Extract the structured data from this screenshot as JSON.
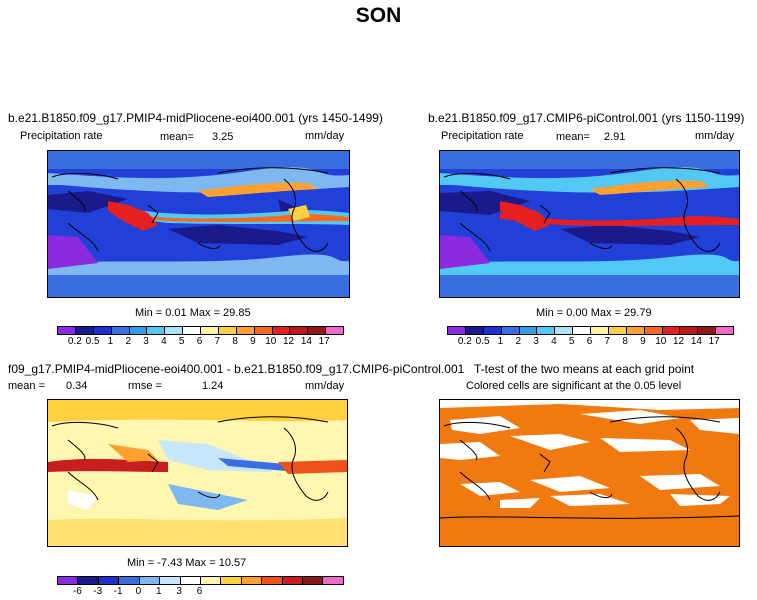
{
  "figure": {
    "season": "SON"
  },
  "panels": {
    "p1": {
      "title": "b.e21.B1850.f09_g17.PMIP4-midPliocene-eoi400.001 (yrs 1450-1499)",
      "field": "Precipitation rate",
      "mean_label": "mean=",
      "mean_value": "3.25",
      "units": "mm/day",
      "minmax": "Min =    0.01  Max =   29.85"
    },
    "p2": {
      "title": "b.e21.B1850.f09_g17.CMIP6-piControl.001 (yrs 1150-1199)",
      "field": "Precipitation rate",
      "mean_label": "mean=",
      "mean_value": "2.91",
      "units": "mm/day",
      "minmax": "Min =    0.00  Max =   29.79"
    },
    "p3": {
      "title": "f09_g17.PMIP4-midPliocene-eoi400.001 - b.e21.B1850.f09_g17.CMIP6-piControl.001",
      "mean_label": "mean =",
      "mean_value": "0.34",
      "rmse_label": "rmse =",
      "rmse_value": "1.24",
      "units": "mm/day",
      "minmax": "Min =   -7.43  Max =   10.57"
    },
    "p4": {
      "title": "T-test of the two means at each grid point",
      "note": "Colored cells are significant at the 0.05 level",
      "significant_color": "#f07a10"
    }
  },
  "chart_data": [
    {
      "type": "heatmap",
      "title": "b.e21.B1850.f09_g17.PMIP4-midPliocene-eoi400.001 (yrs 1450-1499)",
      "variable": "Precipitation rate",
      "units": "mm/day",
      "mean": 3.25,
      "min": 0.01,
      "max": 29.85,
      "colorbar_levels": [
        "0.2",
        "0.5",
        "1",
        "2",
        "3",
        "4",
        "5",
        "6",
        "7",
        "8",
        "9",
        "10",
        "12",
        "14",
        "17"
      ],
      "colorbar_colors": [
        "#8a2be2",
        "#1a1a8c",
        "#1f2fd1",
        "#3a6ee0",
        "#2e9fe6",
        "#54c8f5",
        "#a9e3f7",
        "#ffffff",
        "#fff59a",
        "#ffd040",
        "#ffa030",
        "#f96a1c",
        "#e62020",
        "#b81a1a",
        "#8c1a1a",
        "#f068c8"
      ]
    },
    {
      "type": "heatmap",
      "title": "b.e21.B1850.f09_g17.CMIP6-piControl.001 (yrs 1150-1199)",
      "variable": "Precipitation rate",
      "units": "mm/day",
      "mean": 2.91,
      "min": 0.0,
      "max": 29.79,
      "colorbar_levels": [
        "0.2",
        "0.5",
        "1",
        "2",
        "3",
        "4",
        "5",
        "6",
        "7",
        "8",
        "9",
        "10",
        "12",
        "14",
        "17"
      ]
    },
    {
      "type": "heatmap",
      "title": "f09_g17.PMIP4-midPliocene-eoi400.001 - b.e21.B1850.f09_g17.CMIP6-piControl.001",
      "units": "mm/day",
      "mean": 0.34,
      "rmse": 1.24,
      "min": -7.43,
      "max": 10.57,
      "colorbar_levels": [
        "-6",
        "-3",
        "-1",
        "0",
        "1",
        "3",
        "6"
      ],
      "colorbar_colors": [
        "#8a2be2",
        "#1a1a8c",
        "#1f2fd1",
        "#3a6ee0",
        "#7db8f0",
        "#c8e6fa",
        "#ffffff",
        "#fff6b0",
        "#ffd040",
        "#ffa030",
        "#f0501a",
        "#c81e1e",
        "#8c1a1a",
        "#f068c8"
      ]
    },
    {
      "type": "heatmap",
      "title": "T-test of the two means at each grid point",
      "note": "Colored cells are significant at the 0.05 level"
    }
  ]
}
